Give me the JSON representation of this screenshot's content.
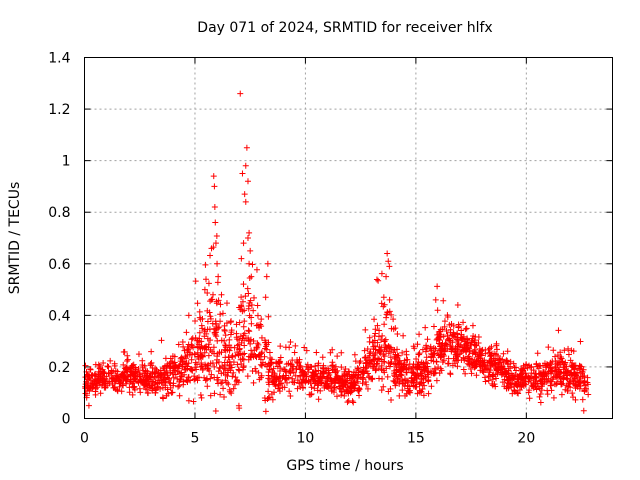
{
  "chart_data": {
    "type": "scatter",
    "title": "Day 071 of 2024, SRMTID for receiver hlfx",
    "xlabel": "GPS time / hours",
    "ylabel": "SRMTID / TECUs",
    "xlim": [
      0,
      23.9
    ],
    "ylim": [
      0,
      1.4
    ],
    "x_ticks": [
      0,
      5,
      10,
      15,
      20
    ],
    "y_ticks": [
      0,
      0.2,
      0.4,
      0.6,
      0.8,
      1,
      1.2,
      1.4
    ],
    "x_tick_labels": [
      "0",
      "5",
      "10",
      "15",
      "20"
    ],
    "y_tick_labels": [
      "0",
      "0.2",
      "0.4",
      "0.6",
      "0.8",
      "1",
      "1.2",
      "1.4"
    ],
    "grid": true,
    "marker": "+",
    "color": "#ff0000",
    "series": [
      {
        "name": "SRMTID",
        "envelope": {
          "hours": [
            0,
            0.5,
            1,
            1.5,
            2,
            2.5,
            3,
            3.5,
            4,
            4.5,
            5,
            5.5,
            5.8,
            6,
            6.5,
            7,
            7.2,
            7.5,
            8,
            8.3,
            8.5,
            9,
            9.5,
            10,
            10.5,
            11,
            11.5,
            12,
            12.5,
            13,
            13.5,
            13.8,
            14,
            14.5,
            15,
            15.5,
            16,
            16.5,
            17,
            17.5,
            18,
            18.5,
            19,
            19.5,
            20,
            20.5,
            21,
            21.5,
            22,
            22.5,
            22.8
          ],
          "median_tecu": [
            0.13,
            0.15,
            0.16,
            0.15,
            0.17,
            0.16,
            0.14,
            0.15,
            0.17,
            0.19,
            0.23,
            0.27,
            0.3,
            0.28,
            0.2,
            0.25,
            0.3,
            0.33,
            0.22,
            0.2,
            0.16,
            0.17,
            0.19,
            0.16,
            0.15,
            0.15,
            0.14,
            0.13,
            0.17,
            0.24,
            0.26,
            0.28,
            0.2,
            0.16,
            0.17,
            0.2,
            0.26,
            0.29,
            0.28,
            0.25,
            0.22,
            0.2,
            0.18,
            0.15,
            0.16,
            0.15,
            0.17,
            0.18,
            0.17,
            0.15,
            0.13
          ],
          "spread_tecu": [
            0.05,
            0.05,
            0.05,
            0.05,
            0.05,
            0.05,
            0.05,
            0.06,
            0.07,
            0.09,
            0.12,
            0.15,
            0.22,
            0.18,
            0.12,
            0.16,
            0.2,
            0.2,
            0.15,
            0.12,
            0.08,
            0.07,
            0.08,
            0.06,
            0.06,
            0.05,
            0.05,
            0.05,
            0.07,
            0.1,
            0.14,
            0.18,
            0.1,
            0.06,
            0.07,
            0.09,
            0.11,
            0.09,
            0.09,
            0.07,
            0.07,
            0.06,
            0.06,
            0.05,
            0.07,
            0.06,
            0.07,
            0.07,
            0.07,
            0.06,
            0.05
          ]
        },
        "peaks": [
          {
            "hour": 5.85,
            "tecu": 0.94
          },
          {
            "hour": 5.88,
            "tecu": 0.9
          },
          {
            "hour": 5.9,
            "tecu": 0.82
          },
          {
            "hour": 5.92,
            "tecu": 0.76
          },
          {
            "hour": 5.95,
            "tecu": 0.68
          },
          {
            "hour": 6.0,
            "tecu": 0.6
          },
          {
            "hour": 6.05,
            "tecu": 0.55
          },
          {
            "hour": 5.75,
            "tecu": 0.66
          },
          {
            "hour": 5.5,
            "tecu": 0.54
          },
          {
            "hour": 5.45,
            "tecu": 0.5
          },
          {
            "hour": 6.2,
            "tecu": 0.48
          },
          {
            "hour": 7.05,
            "tecu": 1.26
          },
          {
            "hour": 7.35,
            "tecu": 1.05
          },
          {
            "hour": 7.3,
            "tecu": 0.98
          },
          {
            "hour": 7.15,
            "tecu": 0.95
          },
          {
            "hour": 7.4,
            "tecu": 0.92
          },
          {
            "hour": 7.25,
            "tecu": 0.87
          },
          {
            "hour": 7.3,
            "tecu": 0.84
          },
          {
            "hour": 7.45,
            "tecu": 0.72
          },
          {
            "hour": 7.4,
            "tecu": 0.7
          },
          {
            "hour": 7.2,
            "tecu": 0.68
          },
          {
            "hour": 7.5,
            "tecu": 0.65
          },
          {
            "hour": 7.45,
            "tecu": 0.6
          },
          {
            "hour": 7.1,
            "tecu": 0.62
          },
          {
            "hour": 7.55,
            "tecu": 0.55
          },
          {
            "hour": 8.3,
            "tecu": 0.6
          },
          {
            "hour": 8.25,
            "tecu": 0.55
          },
          {
            "hour": 8.2,
            "tecu": 0.47
          },
          {
            "hour": 13.7,
            "tecu": 0.64
          },
          {
            "hour": 13.75,
            "tecu": 0.61
          },
          {
            "hour": 13.8,
            "tecu": 0.59
          },
          {
            "hour": 13.65,
            "tecu": 0.55
          },
          {
            "hour": 13.55,
            "tecu": 0.47
          },
          {
            "hour": 15.9,
            "tecu": 0.46
          },
          {
            "hour": 16.9,
            "tecu": 0.44
          },
          {
            "hour": 7.0,
            "tecu": 0.04
          },
          {
            "hour": 5.3,
            "tecu": 0.08
          },
          {
            "hour": 22.6,
            "tecu": 0.03
          },
          {
            "hour": 0.2,
            "tecu": 0.05
          }
        ]
      }
    ]
  }
}
